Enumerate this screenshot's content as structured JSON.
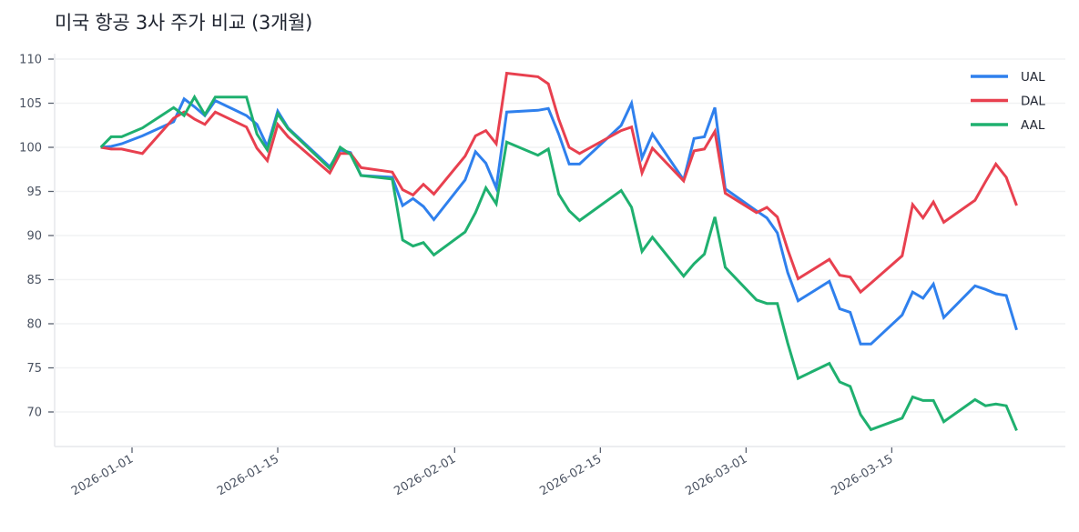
{
  "title": "미국 항공 3사 주가 비교 (3개월)",
  "chart_data": {
    "type": "line",
    "title": "미국 항공 3사 주가 비교 (3개월)",
    "xlabel": "",
    "ylabel": "",
    "ylim": [
      66.3,
      111
    ],
    "yticks": [
      70,
      75,
      80,
      85,
      90,
      95,
      100,
      105,
      110
    ],
    "xticks": [
      "2026-01-01",
      "2026-01-15",
      "2026-02-01",
      "2026-02-15",
      "2026-03-01",
      "2026-03-15"
    ],
    "grid": "horizontal",
    "legend_position": "upper right",
    "x": [
      "2025-12-29",
      "2025-12-30",
      "2025-12-31",
      "2026-01-02",
      "2026-01-05",
      "2026-01-06",
      "2026-01-07",
      "2026-01-08",
      "2026-01-09",
      "2026-01-12",
      "2026-01-13",
      "2026-01-14",
      "2026-01-15",
      "2026-01-16",
      "2026-01-20",
      "2026-01-21",
      "2026-01-22",
      "2026-01-23",
      "2026-01-26",
      "2026-01-27",
      "2026-01-28",
      "2026-01-29",
      "2026-01-30",
      "2026-02-02",
      "2026-02-03",
      "2026-02-04",
      "2026-02-05",
      "2026-02-06",
      "2026-02-09",
      "2026-02-10",
      "2026-02-11",
      "2026-02-12",
      "2026-02-13",
      "2026-02-17",
      "2026-02-18",
      "2026-02-19",
      "2026-02-20",
      "2026-02-23",
      "2026-02-24",
      "2026-02-25",
      "2026-02-26",
      "2026-02-27",
      "2026-03-02",
      "2026-03-03",
      "2026-03-04",
      "2026-03-05",
      "2026-03-06",
      "2026-03-09",
      "2026-03-10",
      "2026-03-11",
      "2026-03-12",
      "2026-03-13",
      "2026-03-16",
      "2026-03-17",
      "2026-03-18",
      "2026-03-19",
      "2026-03-20",
      "2026-03-23",
      "2026-03-24",
      "2026-03-25",
      "2026-03-26",
      "2026-03-27"
    ],
    "series": [
      {
        "name": "UAL",
        "color": "#2f80ed",
        "values": [
          100,
          100.1,
          100.4,
          101.3,
          102.9,
          105.5,
          104.6,
          103.6,
          105.3,
          103.6,
          102.6,
          100.1,
          104.1,
          102.2,
          97.8,
          99.7,
          99.4,
          96.8,
          96.6,
          93.4,
          94.2,
          93.3,
          91.8,
          96.3,
          99.5,
          98.2,
          95.4,
          104.0,
          104.2,
          104.4,
          101.5,
          98.1,
          98.1,
          102.5,
          105.0,
          98.8,
          101.5,
          96.3,
          101.0,
          101.2,
          104.5,
          95.3,
          92.8,
          92.0,
          90.3,
          85.8,
          82.6,
          84.8,
          81.7,
          81.3,
          77.7,
          77.7,
          81.0,
          83.6,
          82.9,
          84.5,
          80.7,
          84.3,
          83.9,
          83.4,
          83.2,
          79.3
        ]
      },
      {
        "name": "DAL",
        "color": "#e8404f",
        "values": [
          100,
          99.8,
          99.8,
          99.3,
          103.3,
          104.0,
          103.2,
          102.6,
          104.0,
          102.3,
          99.9,
          98.5,
          102.6,
          101.2,
          97.1,
          99.3,
          99.3,
          97.7,
          97.2,
          95.2,
          94.6,
          95.8,
          94.7,
          99.0,
          101.3,
          101.9,
          100.4,
          108.4,
          108.0,
          107.2,
          103.2,
          100.0,
          99.3,
          101.9,
          102.3,
          97.1,
          99.9,
          96.2,
          99.6,
          99.8,
          101.8,
          94.8,
          92.6,
          93.2,
          92.1,
          88.4,
          85.1,
          87.3,
          85.5,
          85.3,
          83.6,
          84.6,
          87.7,
          93.5,
          92.0,
          93.8,
          91.5,
          94.0,
          96.1,
          98.1,
          96.6,
          93.4
        ]
      },
      {
        "name": "AAL",
        "color": "#1fb06f",
        "values": [
          100,
          101.2,
          101.2,
          102.2,
          104.5,
          103.6,
          105.7,
          103.7,
          105.7,
          105.7,
          101.5,
          99.7,
          103.8,
          102.1,
          97.6,
          100.0,
          99.2,
          96.8,
          96.4,
          89.5,
          88.8,
          89.2,
          87.8,
          90.4,
          92.6,
          95.4,
          93.6,
          100.6,
          99.1,
          99.8,
          94.7,
          92.8,
          91.7,
          95.1,
          93.2,
          88.2,
          89.8,
          85.4,
          86.8,
          87.9,
          92.1,
          86.4,
          82.7,
          82.3,
          82.3,
          77.8,
          73.8,
          75.5,
          73.4,
          72.9,
          69.7,
          68.0,
          69.3,
          71.7,
          71.3,
          71.3,
          68.9,
          71.4,
          70.7,
          70.9,
          70.7,
          67.9
        ]
      }
    ]
  },
  "legend": {
    "items": [
      {
        "label": "UAL",
        "color": "#2f80ed"
      },
      {
        "label": "DAL",
        "color": "#e8404f"
      },
      {
        "label": "AAL",
        "color": "#1fb06f"
      }
    ]
  },
  "axes": {
    "y_tick_labels": [
      "110",
      "105",
      "100",
      "95",
      "90",
      "85",
      "80",
      "75",
      "70"
    ],
    "x_tick_labels": [
      "2026-01-01",
      "2026-01-15",
      "2026-02-01",
      "2026-02-15",
      "2026-03-01",
      "2026-03-15"
    ]
  }
}
